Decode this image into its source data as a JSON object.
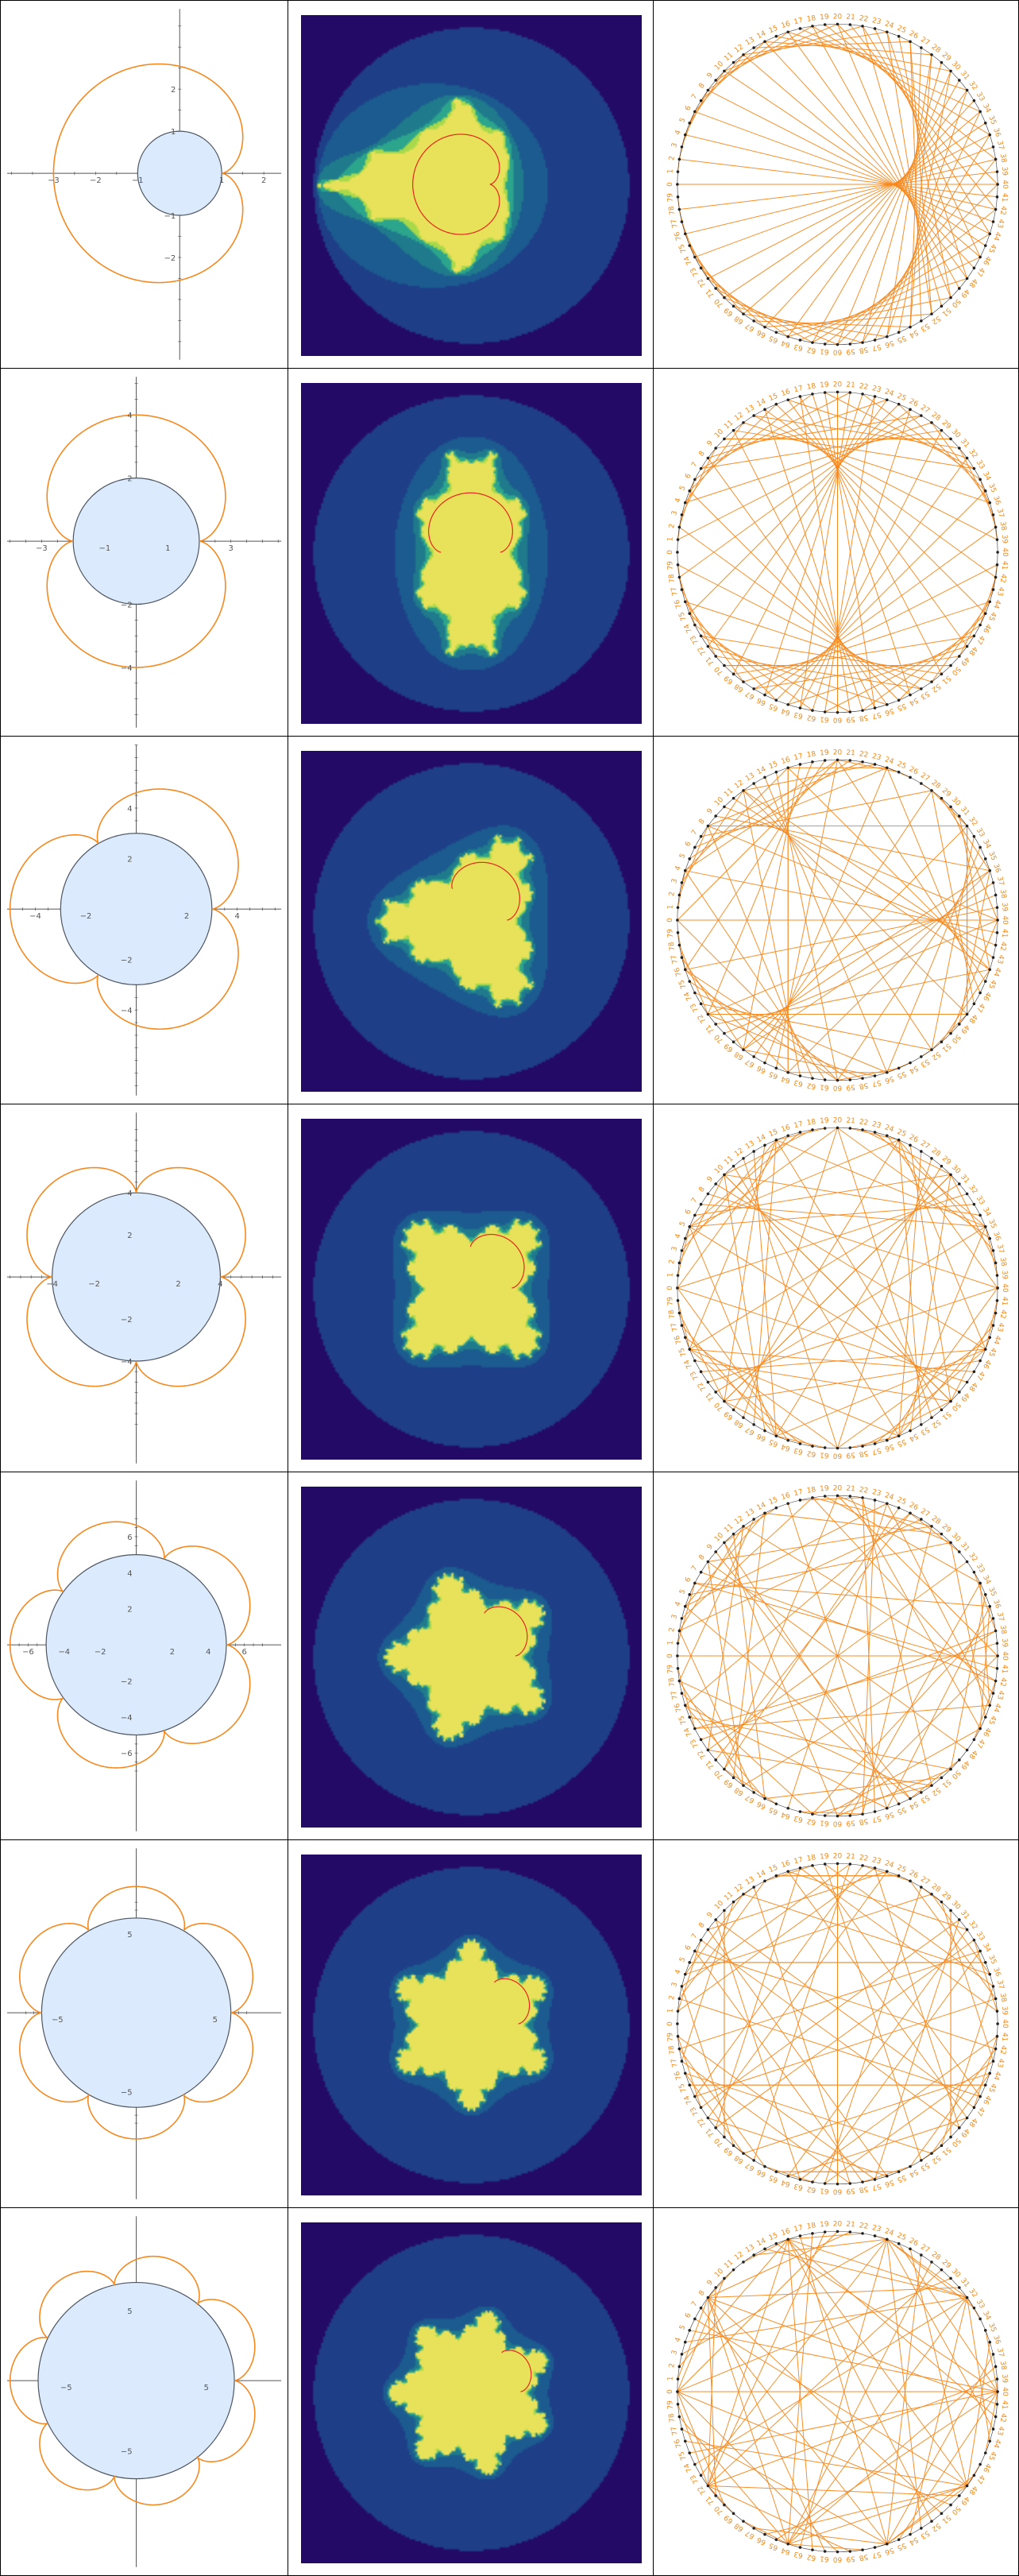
{
  "colors": {
    "epicycloid": "#f5891f",
    "disk_fill": "#dbeafc",
    "disk_stroke": "#4d5560",
    "axis": "#555555",
    "mandel_bands": [
      "#240a67",
      "#1e3f87",
      "#1c5b8f",
      "#1f7a8c",
      "#2ca58d",
      "#a8d94a",
      "#e8e25a"
    ],
    "mandel_boundary": "#e3261f",
    "chord_line": "#f5891f",
    "chord_label": "#f08a1c",
    "chord_point": "#222222"
  },
  "chord_modulus": 80,
  "rows": [
    {
      "k": 1,
      "ticks": [
        "-3",
        "-2",
        "-1",
        "1",
        "2",
        "3",
        "-2",
        "-1",
        "1",
        "2"
      ],
      "labels": {
        "x": [
          "−3",
          "−2",
          "−1",
          "1",
          "2",
          "3"
        ],
        "y": [
          "2",
          "1",
          "−1",
          "−2"
        ]
      }
    },
    {
      "k": 2,
      "labels": {
        "x": [
          "−3",
          "−1",
          "1",
          "3"
        ],
        "y": [
          "4",
          "2",
          "−2",
          "−4"
        ]
      }
    },
    {
      "k": 3,
      "labels": {
        "x": [
          "−4",
          "−2",
          "2",
          "4"
        ],
        "y": [
          "4",
          "2",
          "−2",
          "−4"
        ]
      }
    },
    {
      "k": 4,
      "labels": {
        "x": [
          "−4",
          "−2",
          "2",
          "4"
        ],
        "y": [
          "4",
          "2",
          "−2",
          "−4"
        ]
      }
    },
    {
      "k": 5,
      "labels": {
        "x": [
          "−6",
          "−4",
          "−2",
          "2",
          "4",
          "6"
        ],
        "y": [
          "6",
          "4",
          "2",
          "−2",
          "−4",
          "−6"
        ]
      }
    },
    {
      "k": 6,
      "labels": {
        "x": [
          "−5",
          "5"
        ],
        "y": [
          "5",
          "−5"
        ]
      }
    },
    {
      "k": 7,
      "labels": {
        "x": [
          "−5",
          "5"
        ],
        "y": [
          "5",
          "−5"
        ]
      }
    }
  ]
}
